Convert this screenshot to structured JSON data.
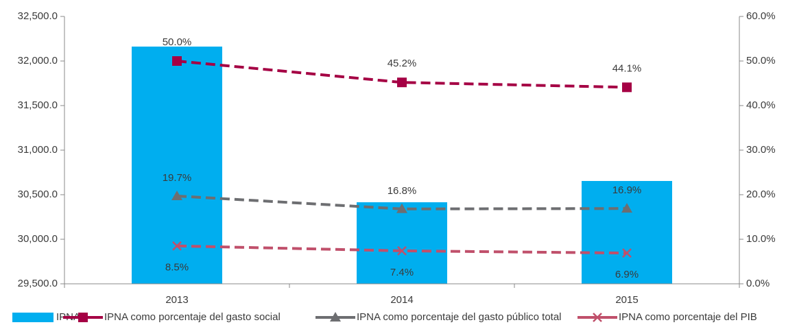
{
  "chart_data": {
    "type": "bar_line",
    "categories": [
      "2013",
      "2014",
      "2015"
    ],
    "bar": {
      "name": "IPNA",
      "color": "#00aeef",
      "values": [
        32162,
        30415,
        30654
      ]
    },
    "series": [
      {
        "name": "IPNA como porcentaje del gasto social",
        "color": "#a50044",
        "marker": "square",
        "axis": "y2",
        "values": [
          50.0,
          45.2,
          44.1
        ],
        "value_labels": [
          "50.0%",
          "45.2%",
          "44.1%"
        ]
      },
      {
        "name": "IPNA como porcentaje del gasto público total",
        "color": "#6d6e71",
        "marker": "triangle",
        "axis": "y2",
        "values": [
          19.7,
          16.8,
          16.9
        ],
        "value_labels": [
          "19.7%",
          "16.8%",
          "16.9%"
        ]
      },
      {
        "name": "IPNA como porcentaje del PIB",
        "color": "#c0506b",
        "marker": "x",
        "axis": "y2",
        "values": [
          8.5,
          7.4,
          6.9
        ],
        "value_labels": [
          "8.5%",
          "7.4%",
          "6.9%"
        ]
      }
    ],
    "ylim": [
      29500,
      32500
    ],
    "yticks": [
      {
        "value": 29500,
        "label": "29,500.0"
      },
      {
        "value": 30000,
        "label": "30,000.0"
      },
      {
        "value": 30500,
        "label": "30,500.0"
      },
      {
        "value": 31000,
        "label": "31,000.0"
      },
      {
        "value": 31500,
        "label": "31,500.0"
      },
      {
        "value": 32000,
        "label": "32,000.0"
      },
      {
        "value": 32500,
        "label": "32,500.0"
      }
    ],
    "y2lim": [
      0,
      60
    ],
    "y2ticks": [
      {
        "value": 0,
        "label": "0.0%"
      },
      {
        "value": 10,
        "label": "10.0%"
      },
      {
        "value": 20,
        "label": "20.0%"
      },
      {
        "value": 30,
        "label": "30.0%"
      },
      {
        "value": 40,
        "label": "40.0%"
      },
      {
        "value": 50,
        "label": "50.0%"
      },
      {
        "value": 60,
        "label": "60.0%"
      }
    ],
    "legend": "bottom"
  }
}
